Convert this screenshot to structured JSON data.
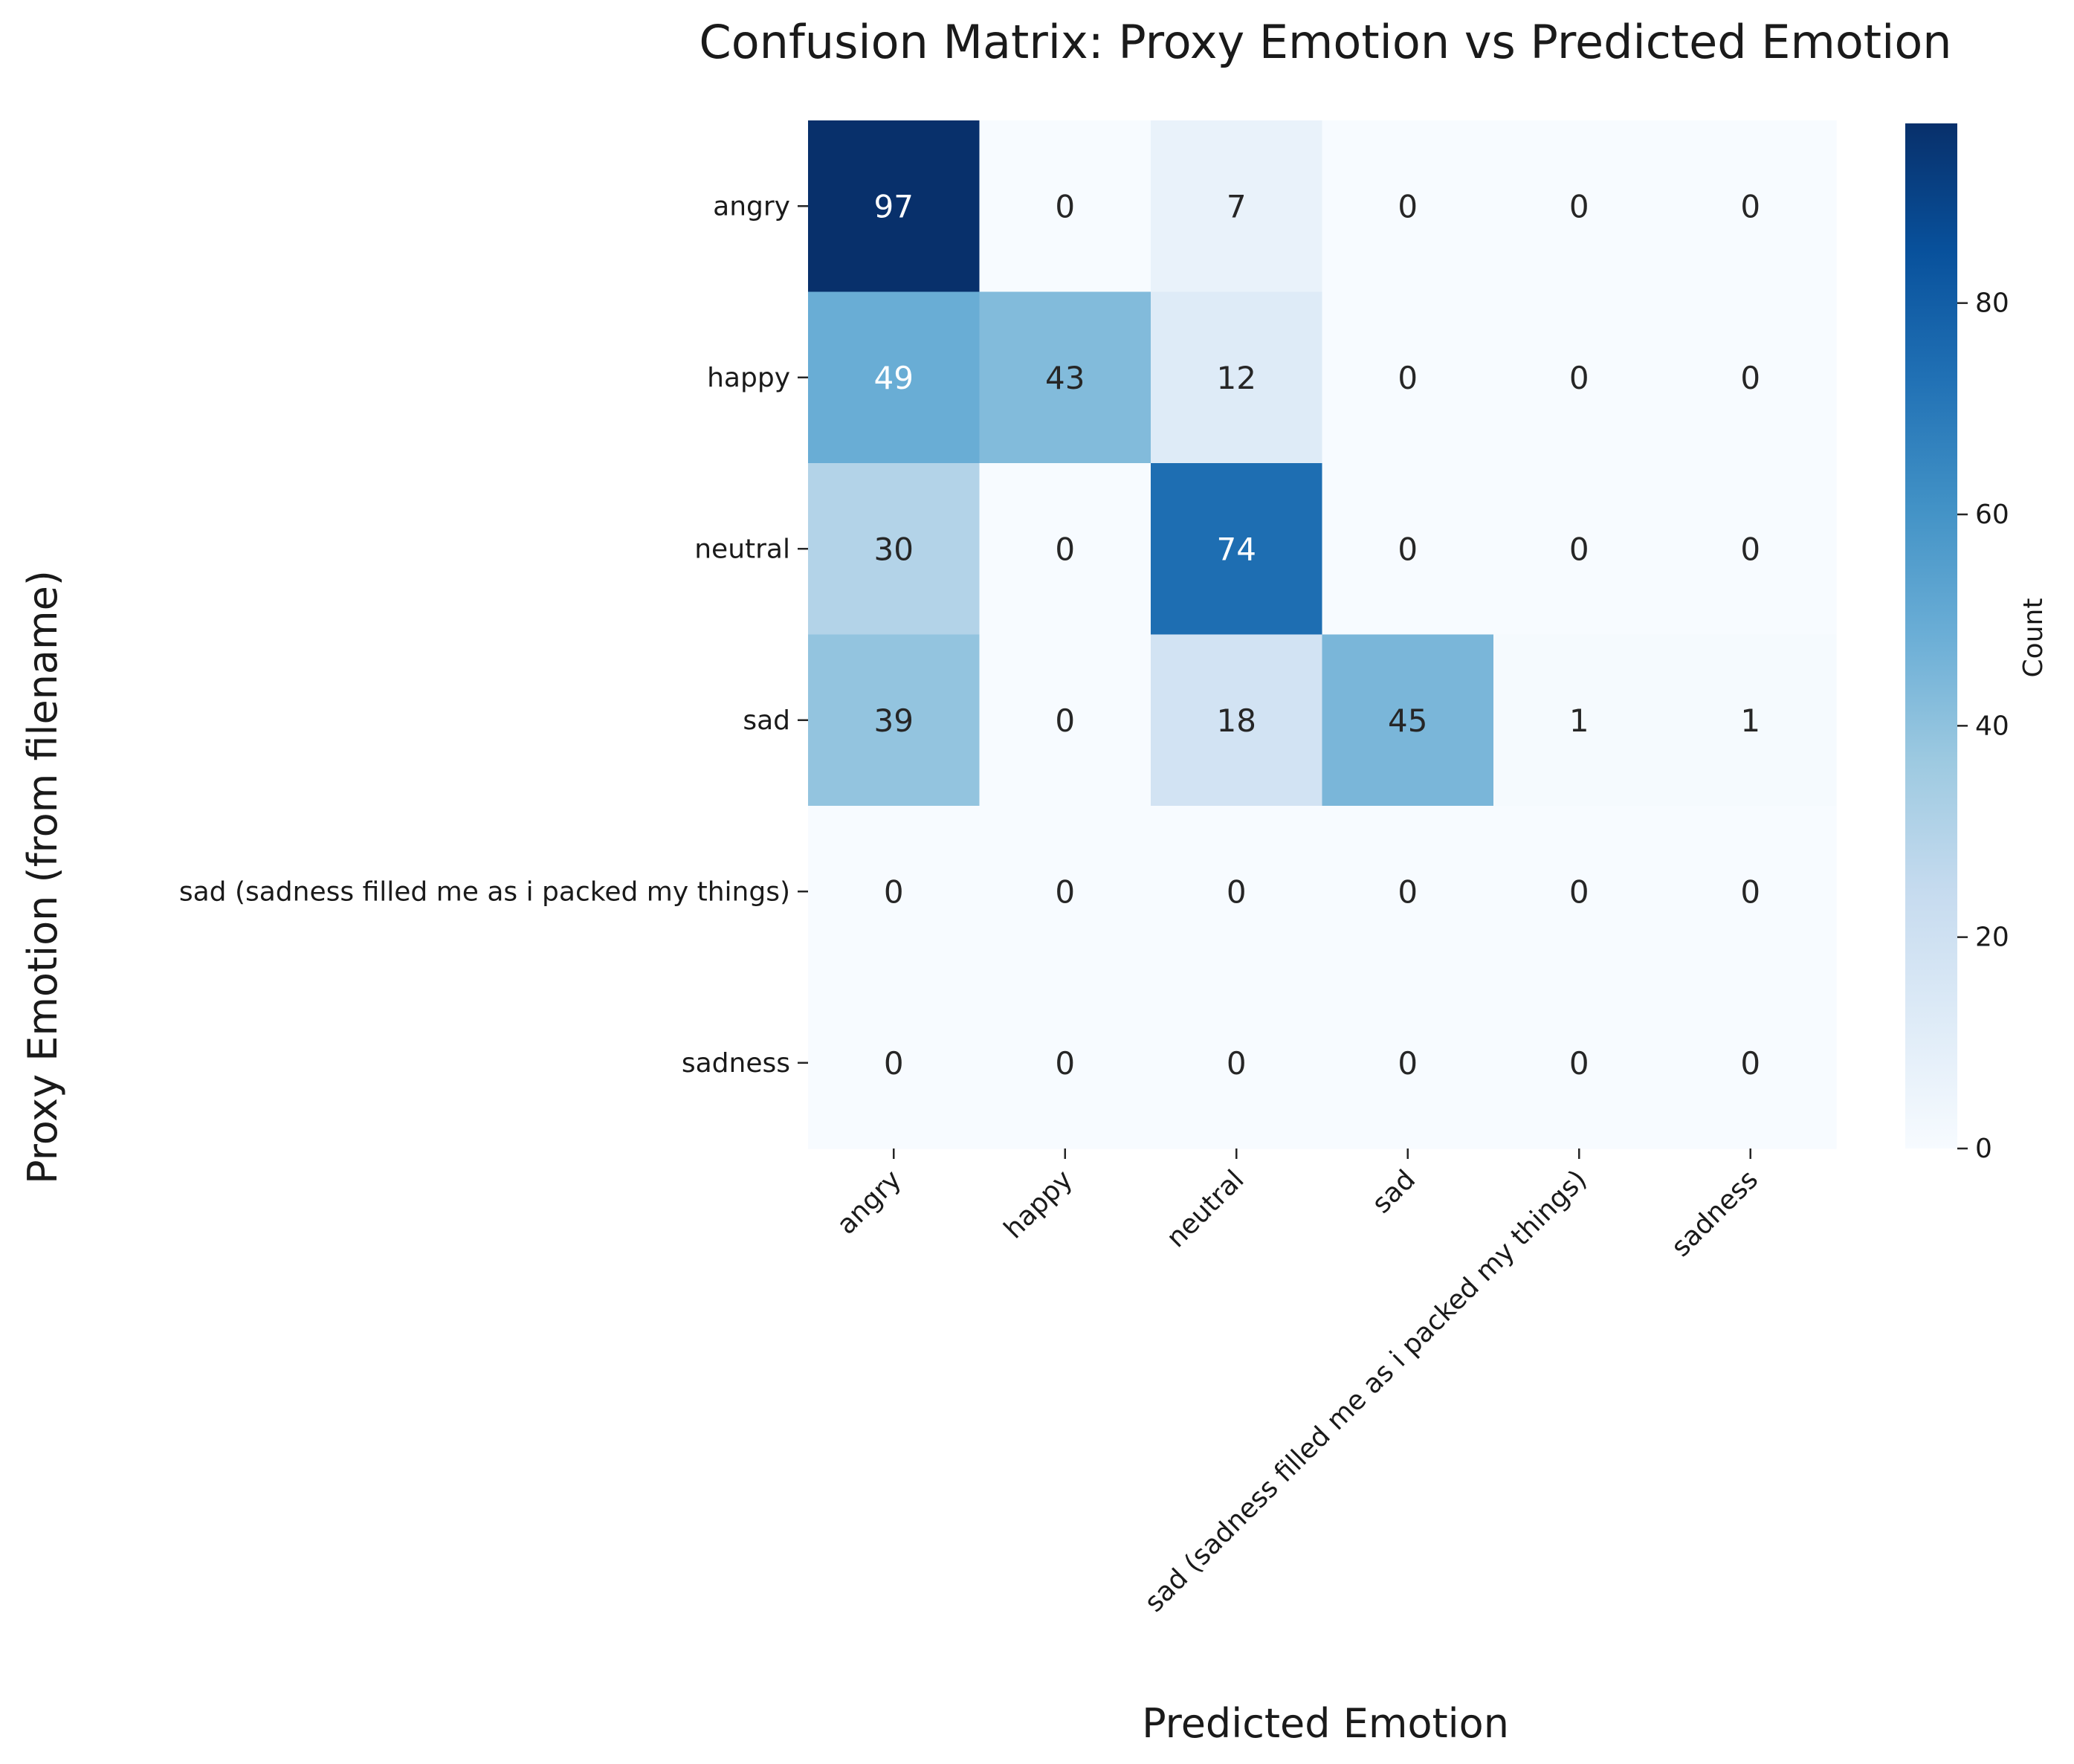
{
  "chart_data": {
    "type": "heatmap",
    "title": "Confusion Matrix: Proxy Emotion vs Predicted Emotion",
    "xlabel": "Predicted Emotion",
    "ylabel": "Proxy Emotion (from filename)",
    "x_categories": [
      "angry",
      "happy",
      "neutral",
      "sad",
      "sad (sadness filled me as i packed my things)",
      "sadness"
    ],
    "y_categories": [
      "angry",
      "happy",
      "neutral",
      "sad",
      "sad (sadness filled me as i packed my things)",
      "sadness"
    ],
    "values": [
      [
        97,
        0,
        7,
        0,
        0,
        0
      ],
      [
        49,
        43,
        12,
        0,
        0,
        0
      ],
      [
        30,
        0,
        74,
        0,
        0,
        0
      ],
      [
        39,
        0,
        18,
        45,
        1,
        1
      ],
      [
        0,
        0,
        0,
        0,
        0,
        0
      ],
      [
        0,
        0,
        0,
        0,
        0,
        0
      ]
    ],
    "colorbar": {
      "label": "Count",
      "min": 0,
      "max": 97,
      "ticks": [
        0,
        20,
        40,
        60,
        80
      ],
      "colormap": "Blues"
    }
  }
}
